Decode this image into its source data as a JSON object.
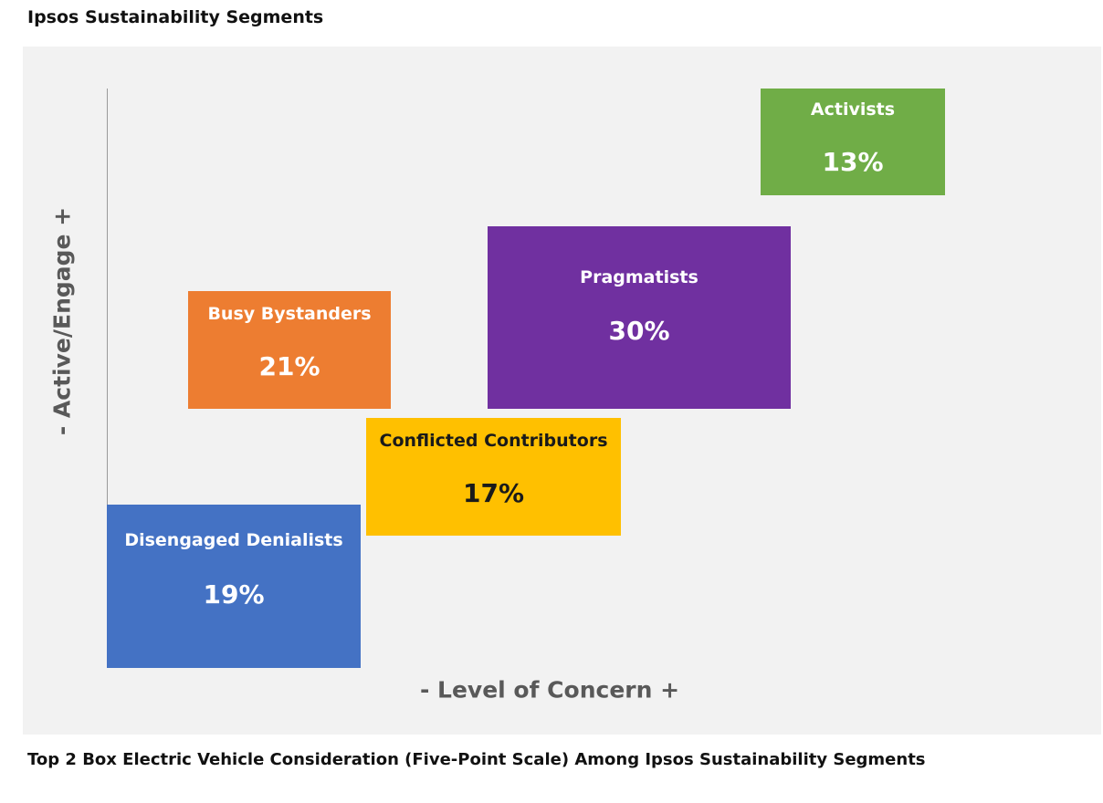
{
  "title": "Ipsos Sustainability Segments",
  "caption": "Top 2 Box Electric Vehicle Consideration (Five-Point Scale) Among Ipsos Sustainability Segments",
  "axes": {
    "y_label": "- Active/Engage +",
    "x_label": "- Level of Concern +"
  },
  "segments": [
    {
      "name": "Disengaged Denialists",
      "value": "19%",
      "color": "#4472c4",
      "text_color": "#ffffff"
    },
    {
      "name": "Busy Bystanders",
      "value": "21%",
      "color": "#ed7d31",
      "text_color": "#ffffff"
    },
    {
      "name": "Conflicted Contributors",
      "value": "17%",
      "color": "#ffc000",
      "text_color": "#1a1a1a"
    },
    {
      "name": "Pragmatists",
      "value": "30%",
      "color": "#7030a0",
      "text_color": "#ffffff"
    },
    {
      "name": "Activists",
      "value": "13%",
      "color": "#70ad47",
      "text_color": "#ffffff"
    }
  ]
}
